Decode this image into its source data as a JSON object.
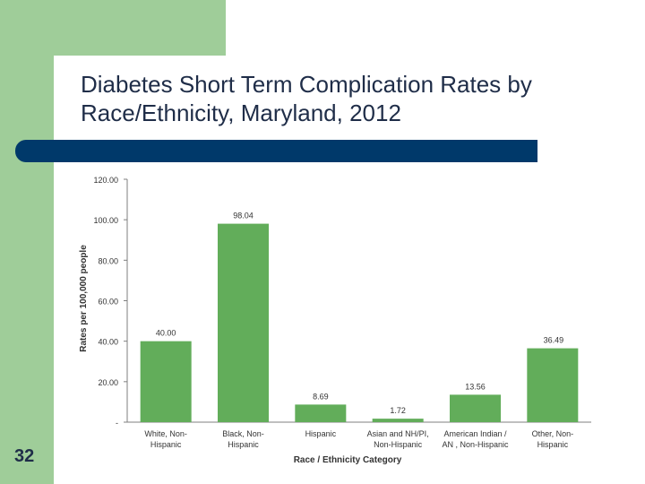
{
  "slide": {
    "title_line1": "Diabetes Short Term Complication Rates by",
    "title_line2": "Race/Ethnicity, Maryland, 2012",
    "number": "32"
  },
  "colors": {
    "bar": "#62ad5a",
    "accent_band": "#9fcd99",
    "title_bar": "#00396a"
  },
  "chart_data": {
    "type": "bar",
    "title": "Diabetes Short Term Complication Rates by Race/Ethnicity, Maryland, 2012",
    "xlabel": "Race / Ethnicity Category",
    "ylabel": "Rates per 100,000 people",
    "ylim": [
      0,
      120
    ],
    "yticks": [
      0,
      20,
      40,
      60,
      80,
      100,
      120
    ],
    "ytick_labels": [
      "-",
      "20.00",
      "40.00",
      "60.00",
      "80.00",
      "100.00",
      "120.00"
    ],
    "categories": [
      [
        "White, Non-",
        "Hispanic"
      ],
      [
        "Black, Non-",
        "Hispanic"
      ],
      [
        "Hispanic"
      ],
      [
        "Asian and NH/PI,",
        "Non-Hispanic"
      ],
      [
        "American Indian /",
        "AN , Non-Hispanic"
      ],
      [
        "Other, Non-",
        "Hispanic"
      ]
    ],
    "values": [
      40.0,
      98.04,
      8.69,
      1.72,
      13.56,
      36.49
    ],
    "value_labels": [
      "40.00",
      "98.04",
      "8.69",
      "1.72",
      "13.56",
      "36.49"
    ]
  }
}
